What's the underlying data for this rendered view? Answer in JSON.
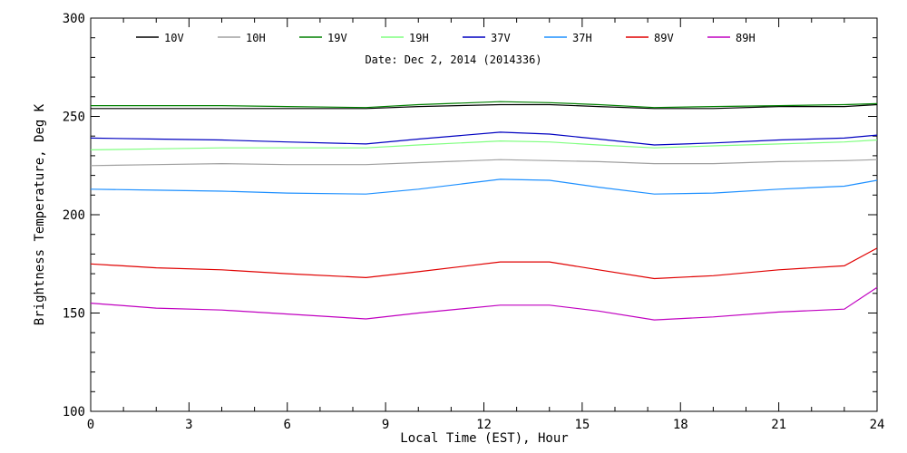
{
  "chart_data": {
    "type": "line",
    "title": "Date: Dec  2, 2014 (2014336)",
    "xlabel": "Local Time (EST), Hour",
    "ylabel": "Brightness Temperature, Deg K",
    "xlim": [
      0,
      24
    ],
    "ylim": [
      100,
      300
    ],
    "x_ticks": [
      "0",
      "3",
      "6",
      "9",
      "12",
      "15",
      "18",
      "21",
      "24"
    ],
    "y_ticks": [
      "100",
      "150",
      "200",
      "250",
      "300"
    ],
    "grid": false,
    "legend_position": "top",
    "x": [
      0,
      2,
      4,
      6,
      8.4,
      10,
      12.5,
      14,
      15.5,
      17.2,
      19,
      21,
      23,
      24
    ],
    "series": [
      {
        "name": "10V",
        "color": "#000000",
        "values": [
          254,
          254,
          254,
          254,
          254,
          255,
          256,
          256,
          255,
          254,
          254,
          255,
          255,
          256
        ]
      },
      {
        "name": "10H",
        "color": "#a0a0a0",
        "values": [
          225,
          225.5,
          226,
          225.5,
          225.5,
          226.5,
          228,
          227.5,
          227,
          226,
          226,
          227,
          227.5,
          228
        ]
      },
      {
        "name": "19V",
        "color": "#008000",
        "values": [
          255.5,
          255.5,
          255.5,
          255,
          254.5,
          256,
          257.5,
          257,
          256,
          254.5,
          255,
          255.5,
          256,
          256.5
        ]
      },
      {
        "name": "19H",
        "color": "#80ff80",
        "values": [
          233,
          233.5,
          234,
          234,
          234,
          235.5,
          237.5,
          237,
          235.5,
          234,
          235,
          236,
          237,
          238
        ]
      },
      {
        "name": "37V",
        "color": "#0000c0",
        "values": [
          239,
          238.5,
          238,
          237,
          236,
          238.5,
          242,
          241,
          238.5,
          235.5,
          236.5,
          238,
          239,
          240.5
        ]
      },
      {
        "name": "37H",
        "color": "#1e90ff",
        "values": [
          213,
          212.5,
          212,
          211,
          210.5,
          213,
          218,
          217.5,
          214,
          210.5,
          211,
          213,
          214.5,
          217.5
        ]
      },
      {
        "name": "89V",
        "color": "#e00000",
        "values": [
          175,
          173,
          172,
          170,
          168,
          171,
          176,
          176,
          172,
          167.5,
          169,
          172,
          174,
          183
        ]
      },
      {
        "name": "89H",
        "color": "#c000c0",
        "values": [
          155,
          152.5,
          151.5,
          149.5,
          147,
          150,
          154,
          154,
          151,
          146.5,
          148,
          150.5,
          152,
          163
        ]
      }
    ]
  }
}
